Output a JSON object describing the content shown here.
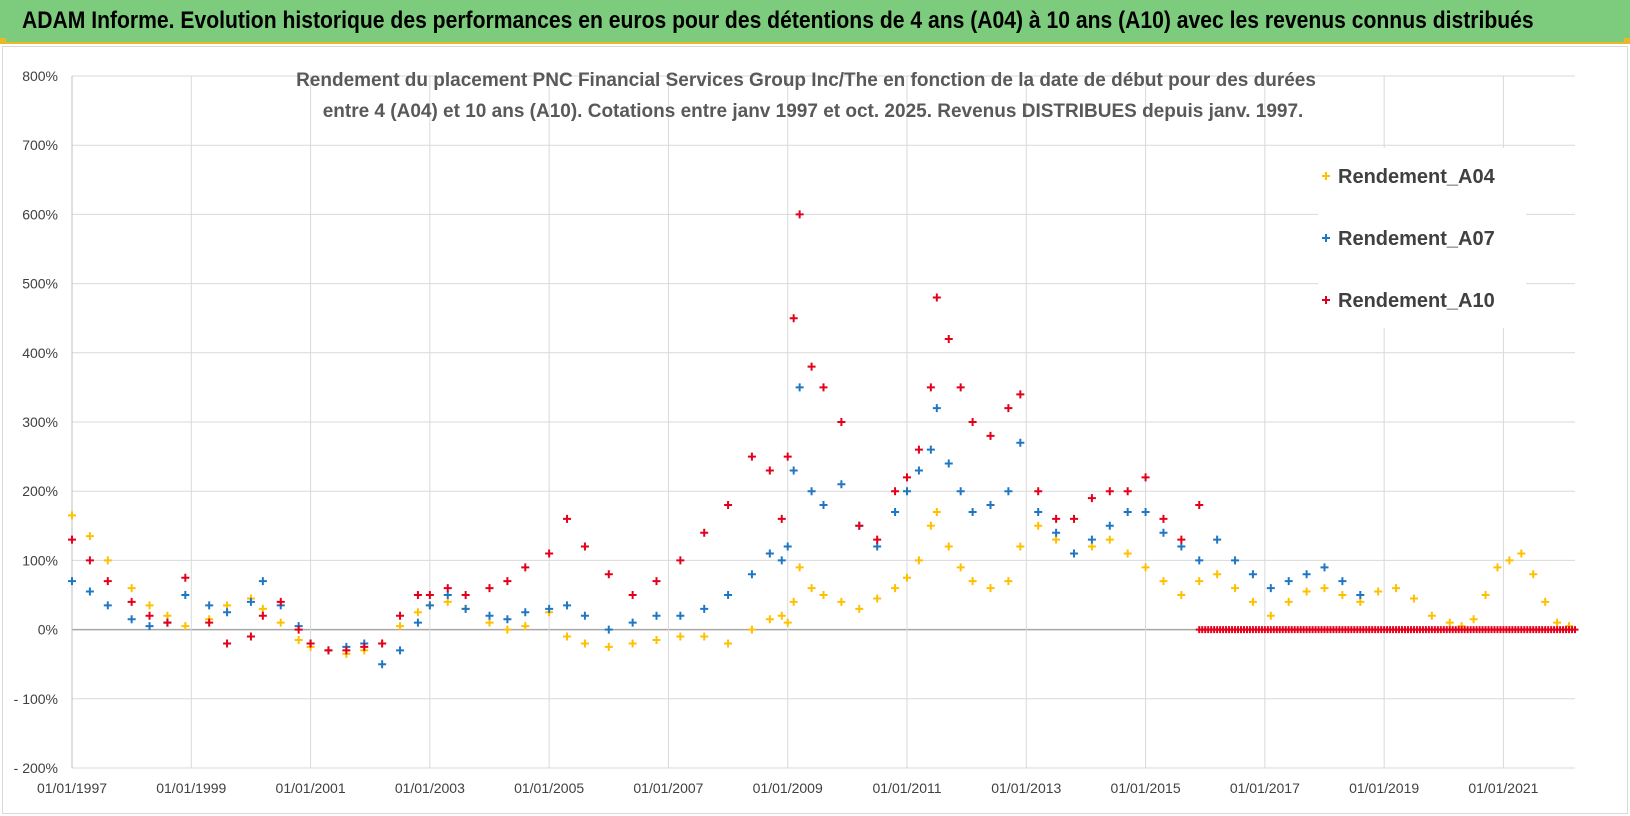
{
  "header": {
    "title": "ADAM Informe. Evolution historique des performances en euros pour des détentions de 4 ans (A04) à 10 ans (A10) avec les revenus connus distribués"
  },
  "chart_data": {
    "type": "scatter",
    "title_lines": [
      "Rendement du placement PNC Financial Services Group Inc/The en fonction de la date de début pour des durées",
      "entre 4 (A04) et 10 ans (A10). Cotations entre janv 1997 et oct. 2025. Revenus DISTRIBUES depuis janv. 1997."
    ],
    "xlabel": "",
    "ylabel": "",
    "xlim": [
      1997.0,
      2022.2
    ],
    "ylim": [
      -200,
      800
    ],
    "y_ticks": [
      -200,
      -100,
      0,
      100,
      200,
      300,
      400,
      500,
      600,
      700,
      800
    ],
    "y_tick_labels": [
      "- 200%",
      "- 100%",
      "0%",
      "100%",
      "200%",
      "300%",
      "400%",
      "500%",
      "600%",
      "700%",
      "800%"
    ],
    "x_ticks": [
      1997,
      1999,
      2001,
      2003,
      2005,
      2007,
      2009,
      2011,
      2013,
      2015,
      2017,
      2019,
      2021
    ],
    "x_tick_labels": [
      "01/01/1997",
      "01/01/1999",
      "01/01/2001",
      "01/01/2003",
      "01/01/2005",
      "01/01/2007",
      "01/01/2009",
      "01/01/2011",
      "01/01/2013",
      "01/01/2015",
      "01/01/2017",
      "01/01/2019",
      "01/01/2021"
    ],
    "legend_position": "top-right",
    "marker": "+",
    "series": [
      {
        "name": "Rendement_A04",
        "color": "#ffc000",
        "x": [
          1997.0,
          1997.3,
          1997.6,
          1998.0,
          1998.3,
          1998.6,
          1998.9,
          1999.3,
          1999.6,
          2000.0,
          2000.2,
          2000.5,
          2000.8,
          2001.0,
          2001.3,
          2001.6,
          2001.9,
          2002.2,
          2002.5,
          2002.8,
          2003.0,
          2003.3,
          2003.6,
          2004.0,
          2004.3,
          2004.6,
          2005.0,
          2005.3,
          2005.6,
          2006.0,
          2006.4,
          2006.8,
          2007.2,
          2007.6,
          2008.0,
          2008.4,
          2008.7,
          2008.9,
          2009.0,
          2009.1,
          2009.2,
          2009.4,
          2009.6,
          2009.9,
          2010.2,
          2010.5,
          2010.8,
          2011.0,
          2011.2,
          2011.4,
          2011.5,
          2011.7,
          2011.9,
          2012.1,
          2012.4,
          2012.7,
          2012.9,
          2013.2,
          2013.5,
          2013.8,
          2014.1,
          2014.4,
          2014.7,
          2015.0,
          2015.3,
          2015.6,
          2015.9,
          2016.2,
          2016.5,
          2016.8,
          2017.1,
          2017.4,
          2017.7,
          2018.0,
          2018.3,
          2018.6,
          2018.9,
          2019.2,
          2019.5,
          2019.8,
          2020.1,
          2020.3,
          2020.5,
          2020.7,
          2020.9,
          2021.1,
          2021.3,
          2021.5,
          2021.7,
          2021.9,
          2022.1
        ],
        "y": [
          165,
          135,
          100,
          60,
          35,
          20,
          5,
          15,
          35,
          45,
          30,
          10,
          -15,
          -25,
          -30,
          -35,
          -30,
          -20,
          5,
          25,
          35,
          40,
          30,
          10,
          0,
          5,
          25,
          -10,
          -20,
          -25,
          -20,
          -15,
          -10,
          -10,
          -20,
          0,
          15,
          20,
          10,
          40,
          90,
          60,
          50,
          40,
          30,
          45,
          60,
          75,
          100,
          150,
          170,
          120,
          90,
          70,
          60,
          70,
          120,
          150,
          130,
          110,
          120,
          130,
          110,
          90,
          70,
          50,
          70,
          80,
          60,
          40,
          20,
          40,
          55,
          60,
          50,
          40,
          55,
          60,
          45,
          20,
          10,
          5,
          15,
          50,
          90,
          100,
          110,
          80,
          40,
          10,
          5
        ]
      },
      {
        "name": "Rendement_A07",
        "color": "#1f77c4",
        "x": [
          1997.0,
          1997.3,
          1997.6,
          1998.0,
          1998.3,
          1998.6,
          1998.9,
          1999.3,
          1999.6,
          2000.0,
          2000.2,
          2000.5,
          2000.8,
          2001.0,
          2001.3,
          2001.6,
          2001.9,
          2002.2,
          2002.5,
          2002.8,
          2003.0,
          2003.3,
          2003.6,
          2004.0,
          2004.3,
          2004.6,
          2005.0,
          2005.3,
          2005.6,
          2006.0,
          2006.4,
          2006.8,
          2007.2,
          2007.6,
          2008.0,
          2008.4,
          2008.7,
          2008.9,
          2009.0,
          2009.1,
          2009.2,
          2009.4,
          2009.6,
          2009.9,
          2010.2,
          2010.5,
          2010.8,
          2011.0,
          2011.2,
          2011.4,
          2011.5,
          2011.7,
          2011.9,
          2012.1,
          2012.4,
          2012.7,
          2012.9,
          2013.2,
          2013.5,
          2013.8,
          2014.1,
          2014.4,
          2014.7,
          2015.0,
          2015.3,
          2015.6,
          2015.9,
          2016.2,
          2016.5,
          2016.8,
          2017.1,
          2017.4,
          2017.7,
          2018.0,
          2018.3,
          2018.6
        ],
        "y": [
          70,
          55,
          35,
          15,
          5,
          10,
          50,
          35,
          25,
          40,
          70,
          35,
          5,
          -20,
          -30,
          -25,
          -20,
          -50,
          -30,
          10,
          35,
          50,
          30,
          20,
          15,
          25,
          30,
          35,
          20,
          0,
          10,
          20,
          20,
          30,
          50,
          80,
          110,
          100,
          120,
          230,
          350,
          200,
          180,
          210,
          150,
          120,
          170,
          200,
          230,
          260,
          320,
          240,
          200,
          170,
          180,
          200,
          270,
          170,
          140,
          110,
          130,
          150,
          170,
          170,
          140,
          120,
          100,
          130,
          100,
          80,
          60,
          70,
          80,
          90,
          70,
          50
        ]
      },
      {
        "name": "Rendement_A10",
        "color": "#e3001b",
        "x": [
          1997.0,
          1997.3,
          1997.6,
          1998.0,
          1998.3,
          1998.6,
          1998.9,
          1999.3,
          1999.6,
          2000.0,
          2000.2,
          2000.5,
          2000.8,
          2001.0,
          2001.3,
          2001.6,
          2001.9,
          2002.2,
          2002.5,
          2002.8,
          2003.0,
          2003.3,
          2003.6,
          2004.0,
          2004.3,
          2004.6,
          2005.0,
          2005.3,
          2005.6,
          2006.0,
          2006.4,
          2006.8,
          2007.2,
          2007.6,
          2008.0,
          2008.4,
          2008.7,
          2008.9,
          2009.0,
          2009.1,
          2009.2,
          2009.4,
          2009.6,
          2009.9,
          2010.2,
          2010.5,
          2010.8,
          2011.0,
          2011.2,
          2011.4,
          2011.5,
          2011.7,
          2011.9,
          2012.1,
          2012.4,
          2012.7,
          2012.9,
          2013.2,
          2013.5,
          2013.8,
          2014.1,
          2014.4,
          2014.7,
          2015.0,
          2015.3,
          2015.6,
          2015.9
        ],
        "y": [
          130,
          100,
          70,
          40,
          20,
          10,
          75,
          10,
          -20,
          -10,
          20,
          40,
          0,
          -20,
          -30,
          -30,
          -25,
          -20,
          20,
          50,
          50,
          60,
          50,
          60,
          70,
          90,
          110,
          160,
          120,
          80,
          50,
          70,
          100,
          140,
          180,
          250,
          230,
          160,
          250,
          450,
          600,
          380,
          350,
          300,
          150,
          130,
          200,
          220,
          260,
          350,
          480,
          420,
          350,
          300,
          280,
          320,
          340,
          200,
          160,
          160,
          190,
          200,
          200,
          220,
          160,
          130,
          180
        ]
      }
    ],
    "zero_segment": {
      "series": "Rendement_A10",
      "x_start": 2015.9,
      "x_end": 2022.2,
      "y": 0
    }
  }
}
